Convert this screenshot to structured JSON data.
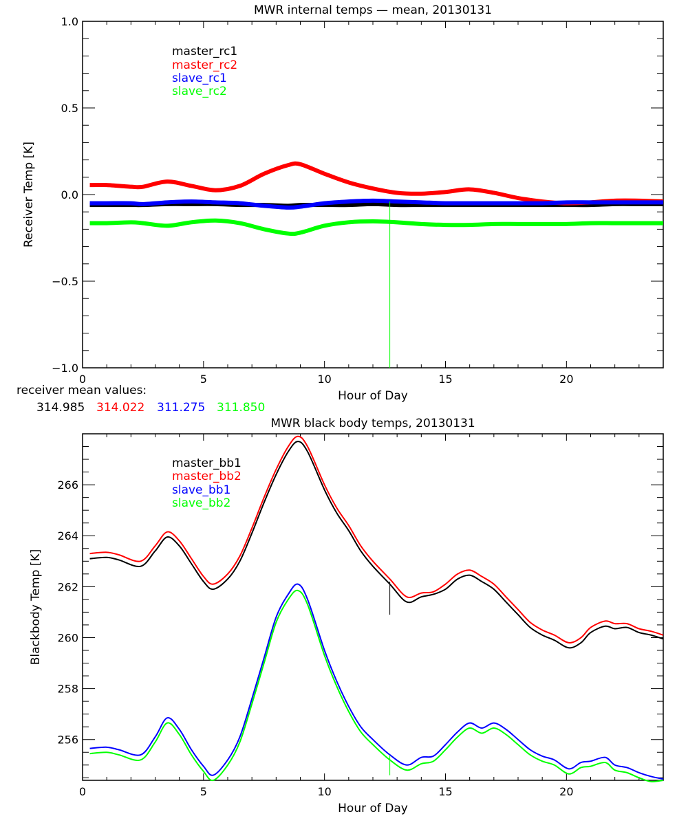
{
  "chart_data": [
    {
      "type": "line",
      "title": "MWR internal temps — mean, 20130131",
      "xlabel": "Hour of Day",
      "ylabel": "Receiver Temp [K]",
      "xlim": [
        0,
        24
      ],
      "ylim": [
        -1.0,
        1.0
      ],
      "xticks": [
        "0",
        "5",
        "10",
        "15",
        "20"
      ],
      "yticks": [
        "-1.0",
        "-0.5",
        "0.0",
        "0.5",
        "1.0"
      ],
      "ytick_values": [
        -1.0,
        -0.5,
        0.0,
        0.5,
        1.0
      ],
      "xtick_values": [
        0,
        5,
        10,
        15,
        20
      ],
      "grid": false,
      "legend_position": "top-left",
      "x": [
        0.3,
        1,
        2,
        2.5,
        3.5,
        4.5,
        5.5,
        6.5,
        7.5,
        8.5,
        9,
        10,
        11,
        12,
        13,
        14,
        15,
        16,
        17,
        18,
        19,
        20,
        21,
        22,
        23,
        24
      ],
      "series": [
        {
          "name": "master_rc1",
          "color": "#000000",
          "values": [
            -0.06,
            -0.06,
            -0.06,
            -0.06,
            -0.055,
            -0.055,
            -0.055,
            -0.06,
            -0.06,
            -0.065,
            -0.06,
            -0.06,
            -0.06,
            -0.055,
            -0.06,
            -0.06,
            -0.06,
            -0.06,
            -0.06,
            -0.06,
            -0.06,
            -0.06,
            -0.06,
            -0.055,
            -0.055,
            -0.055
          ]
        },
        {
          "name": "master_rc2",
          "color": "#ff0000",
          "values": [
            0.055,
            0.055,
            0.045,
            0.045,
            0.075,
            0.05,
            0.025,
            0.05,
            0.12,
            0.17,
            0.175,
            0.12,
            0.07,
            0.035,
            0.01,
            0.005,
            0.015,
            0.03,
            0.01,
            -0.02,
            -0.04,
            -0.05,
            -0.045,
            -0.035,
            -0.035,
            -0.04
          ]
        },
        {
          "name": "slave_rc1",
          "color": "#0000ff",
          "values": [
            -0.05,
            -0.05,
            -0.05,
            -0.055,
            -0.045,
            -0.04,
            -0.045,
            -0.05,
            -0.065,
            -0.075,
            -0.07,
            -0.05,
            -0.04,
            -0.035,
            -0.04,
            -0.045,
            -0.05,
            -0.05,
            -0.05,
            -0.05,
            -0.05,
            -0.045,
            -0.045,
            -0.045,
            -0.045,
            -0.045
          ]
        },
        {
          "name": "slave_rc2",
          "color": "#00ff00",
          "values": [
            -0.165,
            -0.165,
            -0.16,
            -0.165,
            -0.18,
            -0.16,
            -0.15,
            -0.165,
            -0.2,
            -0.225,
            -0.22,
            -0.18,
            -0.16,
            -0.155,
            -0.16,
            -0.17,
            -0.175,
            -0.175,
            -0.17,
            -0.17,
            -0.17,
            -0.17,
            -0.165,
            -0.165,
            -0.165,
            -0.165
          ]
        }
      ],
      "spike": {
        "x": 12.7,
        "from": -1.0,
        "to": -0.04,
        "color": "#00ff00"
      },
      "annotation": {
        "label": "receiver mean values:",
        "values": [
          {
            "text": "314.985",
            "color": "#000000"
          },
          {
            "text": "314.022",
            "color": "#ff0000"
          },
          {
            "text": "311.275",
            "color": "#0000ff"
          },
          {
            "text": "311.850",
            "color": "#00ff00"
          }
        ]
      }
    },
    {
      "type": "line",
      "title": "MWR black body temps, 20130131",
      "xlabel": "Hour of Day",
      "ylabel": "Blackbody Temp [K]",
      "xlim": [
        0,
        24
      ],
      "ylim": [
        254.4,
        268.0
      ],
      "xticks": [
        "0",
        "5",
        "10",
        "15",
        "20"
      ],
      "xtick_values": [
        0,
        5,
        10,
        15,
        20
      ],
      "yticks": [
        "256",
        "258",
        "260",
        "262",
        "264",
        "266"
      ],
      "ytick_values": [
        256,
        258,
        260,
        262,
        264,
        266
      ],
      "grid": false,
      "legend_position": "top-left",
      "x": [
        0.3,
        1,
        1.5,
        2.4,
        3,
        3.5,
        4,
        4.5,
        5,
        5.4,
        6,
        6.5,
        7,
        7.5,
        8,
        8.5,
        8.9,
        9.3,
        10,
        10.5,
        11,
        11.5,
        12,
        12.7,
        13.4,
        14,
        14.5,
        15,
        15.5,
        16,
        16.5,
        17,
        17.5,
        18,
        18.5,
        19,
        19.5,
        20.1,
        20.6,
        21,
        21.6,
        22,
        22.5,
        23,
        23.5,
        24
      ],
      "series": [
        {
          "name": "master_bb1",
          "color": "#000000",
          "values": [
            263.1,
            263.15,
            263.05,
            262.8,
            263.4,
            263.95,
            263.6,
            262.9,
            262.2,
            261.9,
            262.3,
            263.0,
            264.1,
            265.3,
            266.4,
            267.3,
            267.7,
            267.3,
            265.8,
            264.9,
            264.2,
            263.4,
            262.8,
            262.1,
            261.4,
            261.6,
            261.7,
            261.9,
            262.3,
            262.45,
            262.2,
            261.9,
            261.4,
            260.9,
            260.4,
            260.1,
            259.9,
            259.6,
            259.8,
            260.2,
            260.45,
            260.35,
            260.4,
            260.2,
            260.1,
            259.95
          ]
        },
        {
          "name": "master_bb2",
          "color": "#ff0000",
          "values": [
            263.3,
            263.35,
            263.25,
            263.0,
            263.6,
            264.15,
            263.8,
            263.1,
            262.4,
            262.1,
            262.5,
            263.2,
            264.3,
            265.5,
            266.6,
            267.5,
            267.9,
            267.5,
            266.0,
            265.1,
            264.4,
            263.6,
            263.0,
            262.3,
            261.6,
            261.75,
            261.8,
            262.1,
            262.5,
            262.65,
            262.4,
            262.1,
            261.6,
            261.1,
            260.6,
            260.3,
            260.1,
            259.8,
            260.0,
            260.4,
            260.65,
            260.55,
            260.55,
            260.35,
            260.25,
            260.1
          ]
        },
        {
          "name": "slave_bb1",
          "color": "#0000ff",
          "values": [
            255.65,
            255.7,
            255.6,
            255.4,
            256.1,
            256.85,
            256.4,
            255.6,
            254.95,
            254.6,
            255.2,
            256.1,
            257.6,
            259.2,
            260.8,
            261.7,
            262.1,
            261.5,
            259.5,
            258.3,
            257.3,
            256.5,
            256.0,
            255.4,
            255.0,
            255.3,
            255.35,
            255.8,
            256.3,
            256.65,
            256.45,
            256.65,
            256.4,
            256.0,
            255.6,
            255.35,
            255.2,
            254.85,
            255.1,
            255.15,
            255.3,
            255.0,
            254.9,
            254.7,
            254.55,
            254.45
          ]
        },
        {
          "name": "slave_bb2",
          "color": "#00ff00",
          "values": [
            255.45,
            255.5,
            255.4,
            255.2,
            255.9,
            256.65,
            256.2,
            255.4,
            254.75,
            254.4,
            255.0,
            255.9,
            257.4,
            259.0,
            260.6,
            261.5,
            261.85,
            261.3,
            259.3,
            258.1,
            257.1,
            256.3,
            255.8,
            255.2,
            254.8,
            255.05,
            255.15,
            255.6,
            256.1,
            256.45,
            256.25,
            256.45,
            256.2,
            255.8,
            255.4,
            255.15,
            255.0,
            254.65,
            254.9,
            254.95,
            255.1,
            254.8,
            254.7,
            254.5,
            254.35,
            254.4
          ]
        }
      ],
      "spikes": [
        {
          "x": 12.7,
          "from": 260.9,
          "to": 262.2,
          "color": "#000000"
        },
        {
          "x": 12.7,
          "from": 254.6,
          "to": 255.4,
          "color": "#00ff00"
        }
      ]
    }
  ]
}
